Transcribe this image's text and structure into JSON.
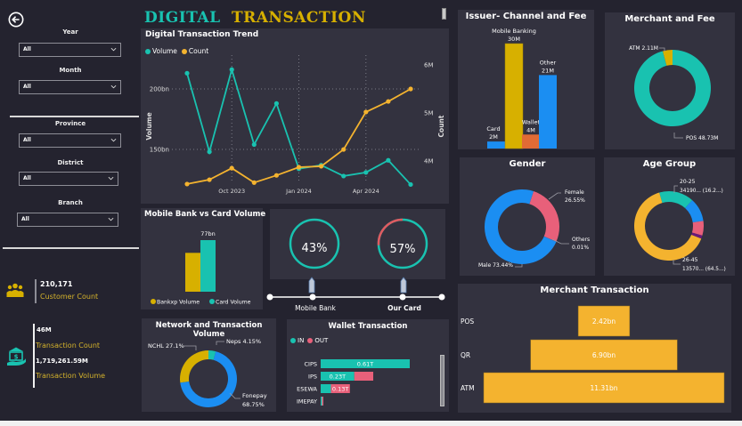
{
  "header": {
    "title_part1": "DIGITAL",
    "title_part2": "TRANSACTION",
    "colors": {
      "teal": "#19c2b0",
      "gold": "#d7b000"
    }
  },
  "sidebar": {
    "back_icon": "back-arrow-icon",
    "filters": [
      {
        "label": "Year",
        "value": "All"
      },
      {
        "label": "Month",
        "value": "All"
      },
      {
        "label": "Province",
        "value": "All"
      },
      {
        "label": "District",
        "value": "All"
      },
      {
        "label": "Branch",
        "value": "All"
      }
    ],
    "kpis": {
      "customer_count": {
        "value": "210,171",
        "label": "Customer Count",
        "icon": "people-icon"
      },
      "transaction_count": {
        "value": "46M",
        "label": "Transaction Count"
      },
      "transaction_volume": {
        "value": "1,719,261.59M",
        "label": "Transaction Volume",
        "icon": "bank-hand-icon"
      }
    }
  },
  "chart_data": [
    {
      "id": "trend",
      "type": "line",
      "title": "Digital Transaction Trend",
      "legend": [
        "Volume",
        "Count"
      ],
      "legend_position": "top-left",
      "x_ticks": [
        "Oct 2023",
        "Jan 2024",
        "Apr 2024"
      ],
      "x": [
        "2023-08",
        "2023-09",
        "2023-10",
        "2023-11",
        "2023-12",
        "2024-01",
        "2024-02",
        "2024-03",
        "2024-04",
        "2024-05",
        "2024-06"
      ],
      "ylabel": "Volume",
      "y2label": "Count",
      "y_ticks": [
        "150bn",
        "200bn"
      ],
      "y2_ticks": [
        "4M",
        "5M",
        "6M"
      ],
      "ylim": [
        120,
        225
      ],
      "y2lim": [
        3.5,
        6.3
      ],
      "series": [
        {
          "name": "Volume",
          "axis": "left",
          "unit": "bn",
          "color": "#19c2b0",
          "values": [
            213,
            148,
            216,
            154,
            188,
            134,
            137,
            128,
            131,
            141,
            121
          ]
        },
        {
          "name": "Count",
          "axis": "right",
          "unit": "M",
          "color": "#f4b32f",
          "values": [
            3.52,
            3.61,
            3.85,
            3.55,
            3.7,
            3.87,
            3.89,
            4.24,
            5.02,
            5.24,
            5.5
          ]
        }
      ]
    },
    {
      "id": "issuer",
      "type": "bar",
      "title": "Issuer- Channel and Fee",
      "categories": [
        "Card",
        "Mobile Banking",
        "Wallet",
        "Other"
      ],
      "values": [
        2,
        30,
        4,
        21
      ],
      "labels": [
        "2M",
        "30M",
        "4M",
        "21M"
      ],
      "colors": [
        "#1b8ef2",
        "#d7b000",
        "#e06b35",
        "#1b8ef2"
      ],
      "ylim": [
        0,
        30
      ]
    },
    {
      "id": "merchant_fee",
      "type": "pie",
      "title": "Merchant and Fee",
      "categories": [
        "ATM",
        "POS"
      ],
      "values": [
        2.11,
        48.73
      ],
      "labels": [
        "ATM 2.11M",
        "POS 48.73M"
      ],
      "colors": [
        "#d7b000",
        "#19c2b0"
      ]
    },
    {
      "id": "gender",
      "type": "pie",
      "title": "Gender",
      "categories": [
        "Female",
        "Others",
        "Male"
      ],
      "values": [
        26.55,
        0.01,
        73.44
      ],
      "labels": [
        "Female 26.55%",
        "Others 0.01%",
        "Male 73.44%"
      ],
      "colors": [
        "#e8607a",
        "#7a2f8a",
        "#1b8ef2"
      ]
    },
    {
      "id": "age",
      "type": "pie",
      "title": "Age Group",
      "categories": [
        "20-25",
        "other-blue",
        "other-pink",
        "other-purple",
        "26-45"
      ],
      "values": [
        16.2,
        11.0,
        6.8,
        1.5,
        64.5
      ],
      "labels": [
        "20-25 34190... (16.2...)",
        "26-45 13570... (64.5...)"
      ],
      "colors": [
        "#19c2b0",
        "#1b8ef2",
        "#e8607a",
        "#6a1b7a",
        "#f4b32f"
      ]
    },
    {
      "id": "mobile_vs_card",
      "type": "bar",
      "title": "Mobile Bank vs Card Volume",
      "categories": [
        "Bankxp Volume",
        "Card Volume"
      ],
      "values": [
        58,
        77
      ],
      "labels": [
        "",
        "77bn"
      ],
      "colors": [
        "#d7b000",
        "#19c2b0"
      ],
      "legend": [
        "Bankxp Volume",
        "Card Volume"
      ],
      "legend_position": "bottom",
      "ylim": [
        0,
        77
      ]
    },
    {
      "id": "network",
      "type": "pie",
      "title": "Network and Transaction Volume",
      "categories": [
        "Neps",
        "Fonepay",
        "NCHL"
      ],
      "values": [
        4.15,
        68.75,
        27.1
      ],
      "labels": [
        "Neps 4.15%",
        "Fonepay 68.75%",
        "NCHL 27.1%"
      ],
      "colors": [
        "#19c2b0",
        "#1b8ef2",
        "#d7b000"
      ]
    },
    {
      "id": "wallet",
      "type": "bar",
      "title": "Wallet Transaction",
      "legend": [
        "IN",
        "OUT"
      ],
      "legend_position": "top-left",
      "categories": [
        "CIPS",
        "IPS",
        "ESEWA",
        "IMEPAY"
      ],
      "series": [
        {
          "name": "IN",
          "color": "#19c2b0",
          "values": [
            0.61,
            0.23,
            0.07,
            0.005
          ]
        },
        {
          "name": "OUT",
          "color": "#e8607a",
          "values": [
            0.0,
            0.13,
            0.13,
            0.005
          ]
        }
      ],
      "labels": [
        "0.61T",
        "0.23T",
        "0.13T",
        ""
      ],
      "xlim": [
        0,
        0.61
      ]
    },
    {
      "id": "merchant_txn",
      "type": "bar",
      "title": "Merchant Transaction",
      "categories": [
        "POS",
        "QR",
        "ATM"
      ],
      "values": [
        2.42,
        6.9,
        11.31
      ],
      "labels": [
        "2.42bn",
        "6.90bn",
        "11.31bn"
      ],
      "color": "#f4b32f",
      "xlim": [
        0,
        11.31
      ]
    }
  ],
  "gauges": {
    "mobile_bank": {
      "percent": 43,
      "label": "43%",
      "caption": "Mobile Bank"
    },
    "our_card": {
      "percent": 57,
      "label": "57%",
      "caption": "Our Card"
    }
  }
}
